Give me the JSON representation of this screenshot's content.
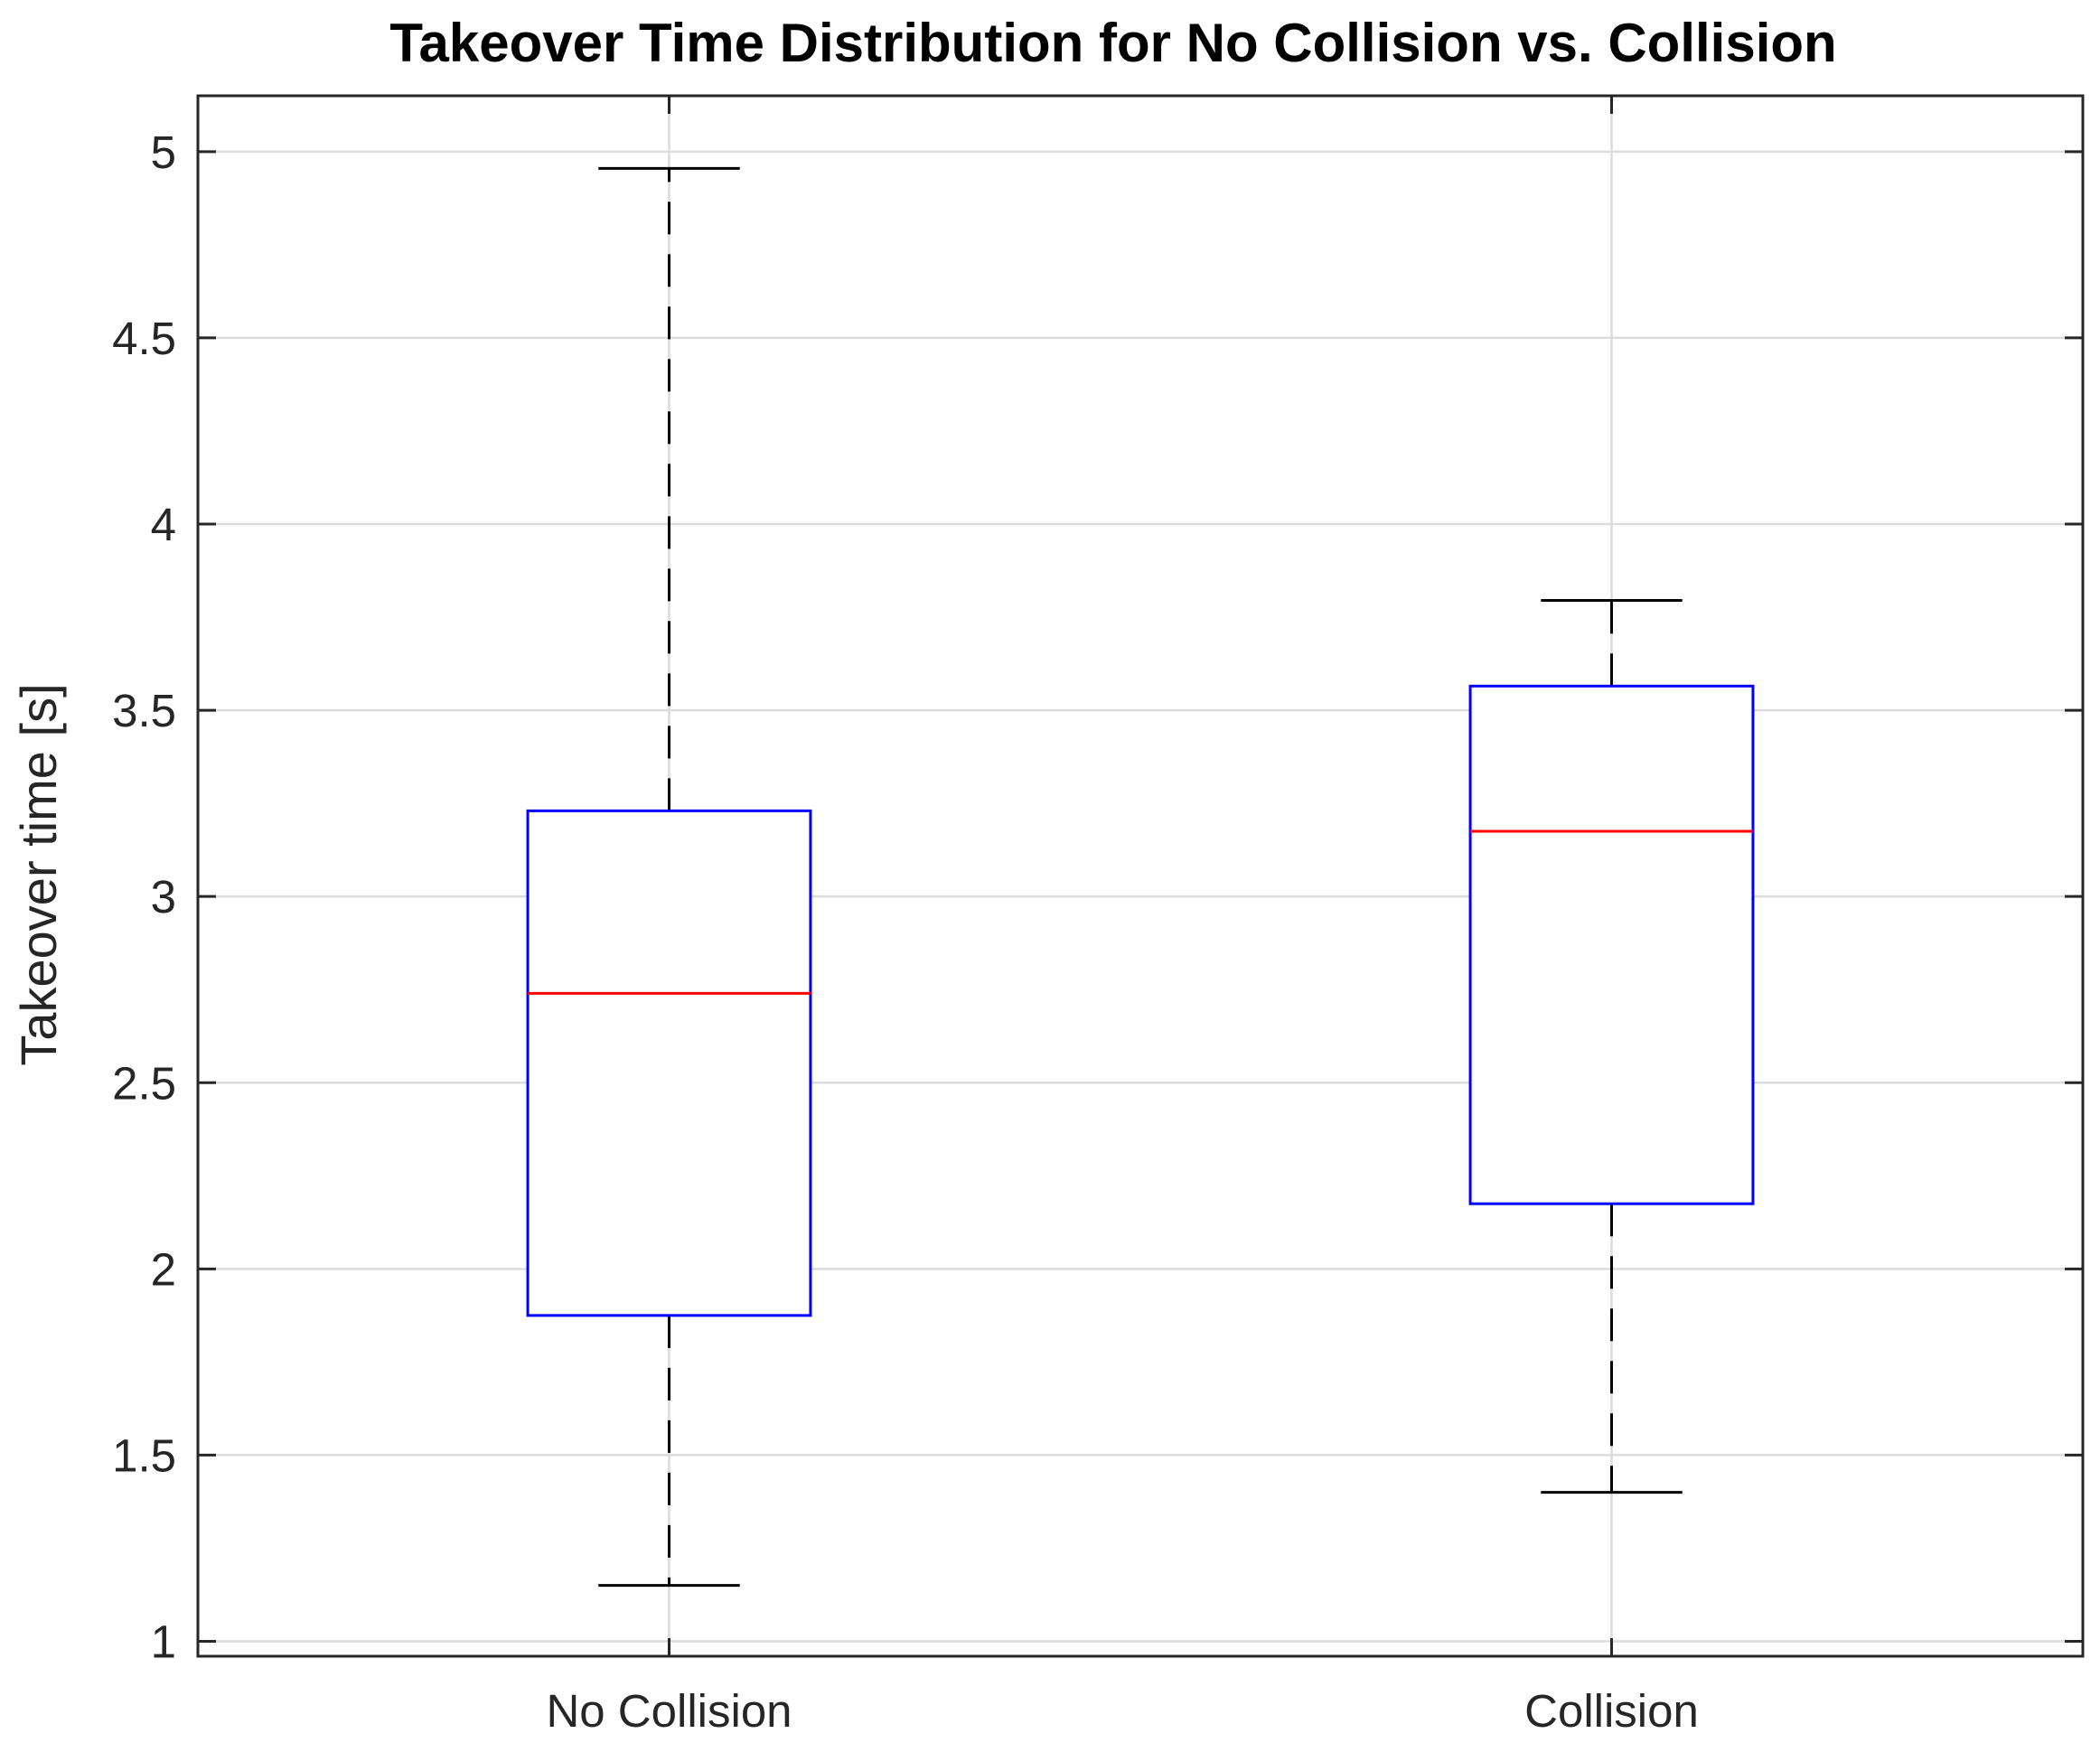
{
  "chart_data": {
    "type": "box",
    "title": "Takeover Time Distribution for No Collision vs. Collision",
    "xlabel": "",
    "ylabel": "Takeover time [s]",
    "ylim": [
      0.96,
      5.15
    ],
    "yticks": [
      1,
      1.5,
      2,
      2.5,
      3,
      3.5,
      4,
      4.5,
      5
    ],
    "ytick_labels": [
      "1",
      "1.5",
      "2",
      "2.5",
      "3",
      "3.5",
      "4",
      "4.5",
      "5"
    ],
    "grid": true,
    "categories": [
      "No Collision",
      "Collision"
    ],
    "boxes": [
      {
        "name": "No Collision",
        "whisker_low": 1.15,
        "q1": 1.875,
        "median": 2.74,
        "q3": 3.23,
        "whisker_high": 4.955
      },
      {
        "name": "Collision",
        "whisker_low": 1.4,
        "q1": 2.175,
        "median": 3.175,
        "q3": 3.565,
        "whisker_high": 3.795
      }
    ],
    "colors": {
      "box": "#0000ff",
      "median": "#ff0000",
      "whisker": "#000000",
      "grid": "#dcdcdc",
      "axis": "#262626"
    }
  }
}
